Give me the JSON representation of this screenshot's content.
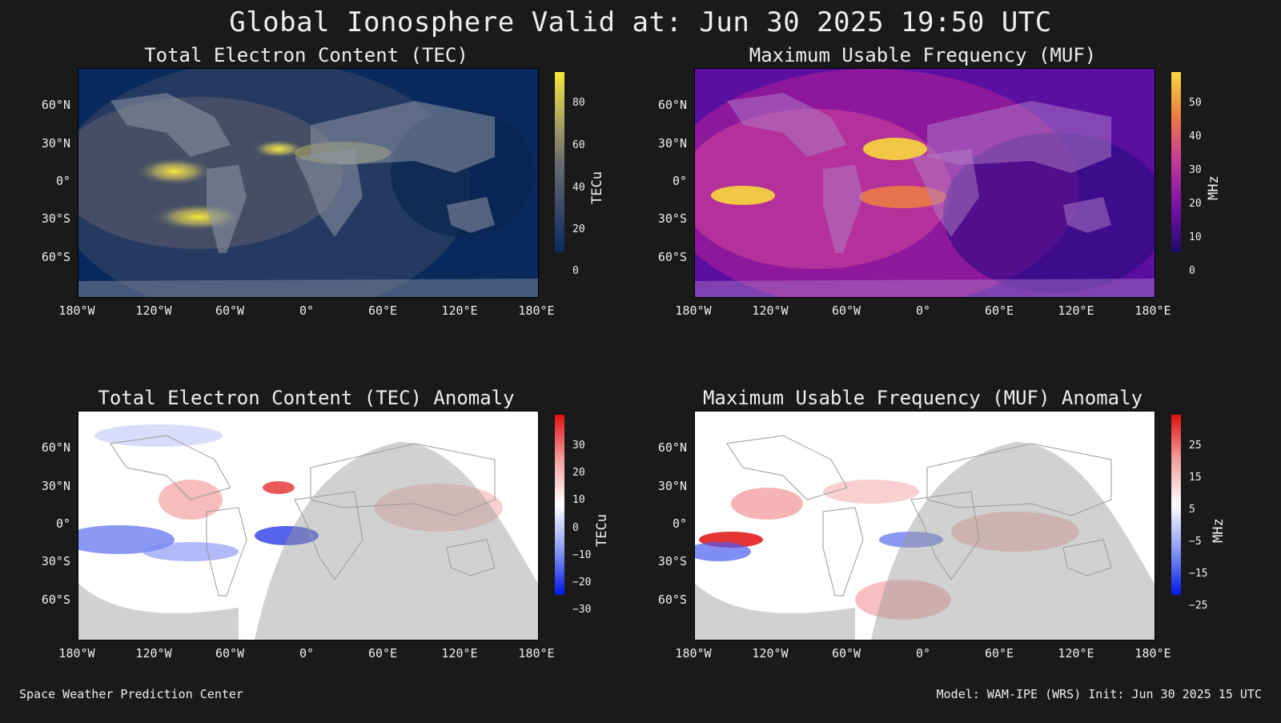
{
  "title": "Global Ionosphere Valid at: Jun 30 2025 19:50 UTC",
  "lat_ticks": [
    "60°N",
    "30°N",
    "0°",
    "30°S",
    "60°S"
  ],
  "lon_ticks": [
    "180°W",
    "120°W",
    "60°W",
    "0°",
    "60°E",
    "120°E",
    "180°E"
  ],
  "panels": {
    "tec": {
      "title": "Total Electron Content (TEC)",
      "cbar_label": "TECu",
      "cbar_ticks": [
        "80",
        "60",
        "40",
        "20",
        "0"
      ],
      "colors": [
        "#0a2a5e",
        "#3a4a6a",
        "#6a6c70",
        "#b0a860",
        "#f7e83a"
      ]
    },
    "muf": {
      "title": "Maximum Usable Frequency (MUF)",
      "cbar_label": "MHz",
      "cbar_ticks": [
        "50",
        "40",
        "30",
        "20",
        "10",
        "0"
      ],
      "colors": [
        "#1d0a6e",
        "#7a10a8",
        "#c2389a",
        "#ec7a46",
        "#f8d83c"
      ]
    },
    "tec_anom": {
      "title": "Total Electron Content (TEC) Anomaly",
      "cbar_label": "TECu",
      "cbar_ticks": [
        "30",
        "20",
        "10",
        "0",
        "−10",
        "−20",
        "−30"
      ],
      "colors": [
        "#0018e8",
        "#ffffff",
        "#e01010"
      ]
    },
    "muf_anom": {
      "title": "Maximum Usable Frequency (MUF) Anomaly",
      "cbar_label": "MHz",
      "cbar_ticks": [
        "25",
        "15",
        "5",
        "−5",
        "−15",
        "−25"
      ],
      "colors": [
        "#0018e8",
        "#ffffff",
        "#e01010"
      ]
    }
  },
  "footer": {
    "left": "Space Weather Prediction Center",
    "right": "Model: WAM-IPE (WRS) Init: Jun 30 2025 15 UTC"
  }
}
